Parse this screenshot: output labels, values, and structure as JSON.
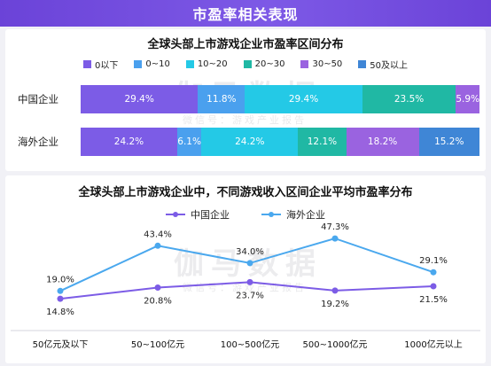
{
  "banner": {
    "title": "市盈率相关表现"
  },
  "watermark": {
    "main": "伽马数据",
    "sub": "微信号：游戏产业报告"
  },
  "chart_data": [
    {
      "type": "bar",
      "stacked": true,
      "orientation": "horizontal",
      "title": "全球头部上市游戏企业市盈率区间分布",
      "categories": [
        "中国企业",
        "海外企业"
      ],
      "series": [
        {
          "name": "0以下",
          "color": "#7c5ce6",
          "values": [
            29.4,
            24.2
          ]
        },
        {
          "name": "0~10",
          "color": "#4aa0ee",
          "values": [
            11.8,
            6.1
          ]
        },
        {
          "name": "10~20",
          "color": "#24c9e6",
          "values": [
            29.4,
            24.2
          ]
        },
        {
          "name": "20~30",
          "color": "#20b8a4",
          "values": [
            23.5,
            12.1
          ]
        },
        {
          "name": "30~50",
          "color": "#9a63e0",
          "values": [
            5.9,
            18.2
          ]
        },
        {
          "name": "50及以上",
          "color": "#3f86d6",
          "values": [
            0,
            15.2
          ]
        }
      ],
      "value_labels": [
        [
          "29.4%",
          "11.8%",
          "29.4%",
          "23.5%",
          "5.9%",
          ""
        ],
        [
          "24.2%",
          "6.1%",
          "24.2%",
          "12.1%",
          "18.2%",
          "15.2%"
        ]
      ],
      "xlim": [
        0,
        100
      ],
      "unit": "%"
    },
    {
      "type": "line",
      "title": "全球头部上市游戏企业中，不同游戏收入区间企业平均市盈率分布",
      "categories": [
        "50亿元及以下",
        "50~100亿元",
        "100~500亿元",
        "500~1000亿元",
        "1000亿元以上"
      ],
      "series": [
        {
          "name": "中国企业",
          "color": "#7c5ce6",
          "values": [
            14.8,
            20.8,
            23.7,
            19.2,
            21.5
          ],
          "labels": [
            "14.8%",
            "20.8%",
            "23.7%",
            "19.2%",
            "21.5%"
          ]
        },
        {
          "name": "海外企业",
          "color": "#4aa8ee",
          "values": [
            19.0,
            43.4,
            34.0,
            47.3,
            29.1
          ],
          "labels": [
            "19.0%",
            "43.4%",
            "34.0%",
            "47.3%",
            "29.1%"
          ]
        }
      ],
      "ylim": [
        0,
        55
      ],
      "grid": false,
      "legend_position": "top"
    }
  ]
}
